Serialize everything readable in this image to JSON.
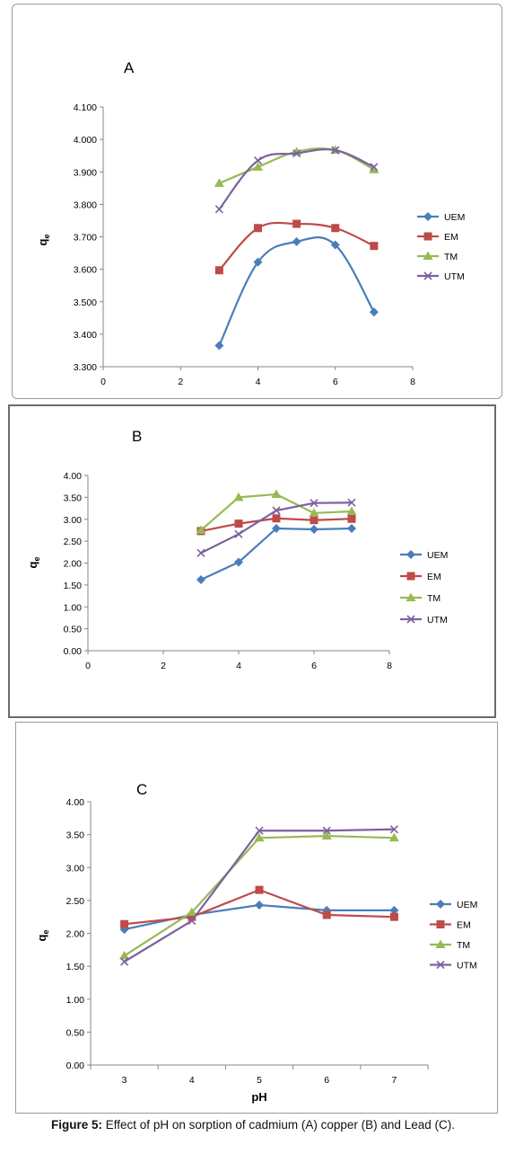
{
  "caption": {
    "label": "Figure 5:",
    "text": " Effect of pH on sorption of cadmium (A) copper (B) and Lead (C)."
  },
  "series_colors": {
    "UEM": "#4a7ebb",
    "EM": "#be4b48",
    "TM": "#98b954",
    "UTM": "#7d60a0"
  },
  "chart_data": [
    {
      "type": "line",
      "panel_label": "A",
      "ylabel": "qe",
      "xlabel": "",
      "x_ticks": [
        "0",
        "2",
        "4",
        "6",
        "8"
      ],
      "y_ticks": [
        "3.300",
        "3.400",
        "3.500",
        "3.600",
        "3.700",
        "3.800",
        "3.900",
        "4.000",
        "4.100"
      ],
      "xlim": [
        0,
        8
      ],
      "ylim": [
        3.3,
        4.1
      ],
      "legend_position": "right",
      "x": [
        3,
        4,
        5,
        6,
        7
      ],
      "series": [
        {
          "name": "UEM",
          "values": [
            3.365,
            3.622,
            3.685,
            3.675,
            3.468
          ]
        },
        {
          "name": "EM",
          "values": [
            3.597,
            3.727,
            3.74,
            3.727,
            3.672
          ]
        },
        {
          "name": "TM",
          "values": [
            3.865,
            3.915,
            3.962,
            3.967,
            3.907
          ]
        },
        {
          "name": "UTM",
          "values": [
            3.785,
            3.935,
            3.957,
            3.967,
            3.915
          ]
        }
      ]
    },
    {
      "type": "line",
      "panel_label": "B",
      "ylabel": "qe",
      "xlabel": "",
      "x_ticks": [
        "0",
        "2",
        "4",
        "6",
        "8"
      ],
      "y_ticks": [
        "0.00",
        "0.50",
        "1.00",
        "1.50",
        "2.00",
        "2.50",
        "3.00",
        "3.50",
        "4.00"
      ],
      "xlim": [
        0,
        8
      ],
      "ylim": [
        0,
        4
      ],
      "legend_position": "right",
      "x": [
        3,
        4,
        5,
        6,
        7
      ],
      "series": [
        {
          "name": "UEM",
          "values": [
            1.62,
            2.02,
            2.79,
            2.77,
            2.79
          ]
        },
        {
          "name": "EM",
          "values": [
            2.73,
            2.9,
            3.02,
            2.98,
            3.01
          ]
        },
        {
          "name": "TM",
          "values": [
            2.75,
            3.5,
            3.57,
            3.14,
            3.18
          ]
        },
        {
          "name": "UTM",
          "values": [
            2.23,
            2.66,
            3.2,
            3.37,
            3.38
          ]
        }
      ]
    },
    {
      "type": "line",
      "panel_label": "C",
      "ylabel": "qe",
      "xlabel": "pH",
      "categories": [
        "3",
        "4",
        "5",
        "6",
        "7"
      ],
      "y_ticks": [
        "0.00",
        "0.50",
        "1.00",
        "1.50",
        "2.00",
        "2.50",
        "3.00",
        "3.50",
        "4.00"
      ],
      "ylim": [
        0,
        4
      ],
      "legend_position": "right",
      "series": [
        {
          "name": "UEM",
          "values": [
            2.06,
            2.28,
            2.43,
            2.35,
            2.35
          ]
        },
        {
          "name": "EM",
          "values": [
            2.14,
            2.25,
            2.66,
            2.28,
            2.25
          ]
        },
        {
          "name": "TM",
          "values": [
            1.66,
            2.32,
            3.45,
            3.48,
            3.45
          ]
        },
        {
          "name": "UTM",
          "values": [
            1.57,
            2.19,
            3.56,
            3.56,
            3.58
          ]
        }
      ]
    }
  ]
}
